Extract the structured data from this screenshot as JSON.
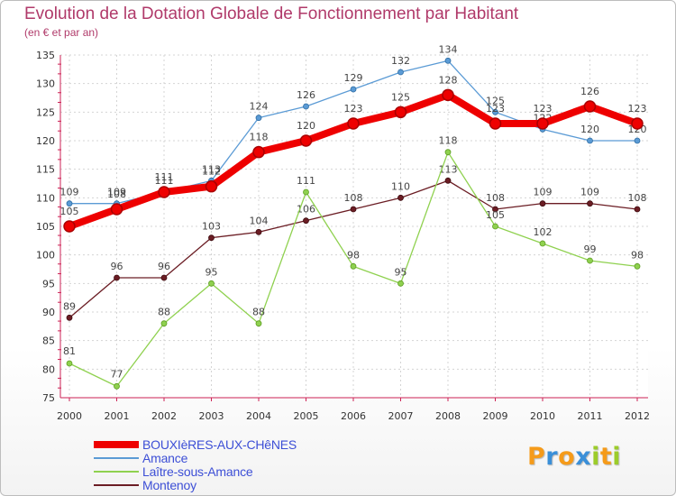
{
  "chart_data": {
    "type": "line",
    "title": "Evolution de la Dotation Globale de Fonctionnement par Habitant",
    "subtitle": "(en € et par an)",
    "xlabel": "",
    "ylabel": "",
    "x": [
      "2000",
      "2001",
      "2002",
      "2003",
      "2004",
      "2005",
      "2006",
      "2007",
      "2008",
      "2009",
      "2010",
      "2011",
      "2012"
    ],
    "ylim": [
      75,
      135
    ],
    "yticks": [
      75,
      80,
      85,
      90,
      95,
      100,
      105,
      110,
      115,
      120,
      125,
      130,
      135
    ],
    "grid": true,
    "legend_position": "bottom-left",
    "series": [
      {
        "name": "BOUXIèRES-AUX-CHêNES",
        "color": "#ee0000",
        "values": [
          105,
          108,
          111,
          112,
          118,
          120,
          123,
          125,
          128,
          123,
          123,
          126,
          123
        ]
      },
      {
        "name": "Amance",
        "color": "#5b9bd5",
        "values": [
          109,
          109,
          111,
          113,
          124,
          126,
          129,
          132,
          134,
          125,
          122,
          120,
          120
        ]
      },
      {
        "name": "Laître-sous-Amance",
        "color": "#8fd14f",
        "values": [
          81,
          77,
          88,
          95,
          88,
          111,
          98,
          95,
          118,
          105,
          102,
          99,
          98
        ]
      },
      {
        "name": "Montenoy",
        "color": "#6b1d24",
        "values": [
          89,
          96,
          96,
          103,
          104,
          106,
          108,
          110,
          113,
          108,
          109,
          109,
          108
        ]
      }
    ]
  },
  "logo": {
    "letters": [
      "P",
      "r",
      "o",
      "x",
      "i",
      "t",
      "i"
    ],
    "colors": [
      "#f59b1a",
      "#3a8fd8",
      "#f59b1a",
      "#3a8fd8",
      "#9ccc2a",
      "#f59b1a",
      "#9ccc2a"
    ]
  }
}
